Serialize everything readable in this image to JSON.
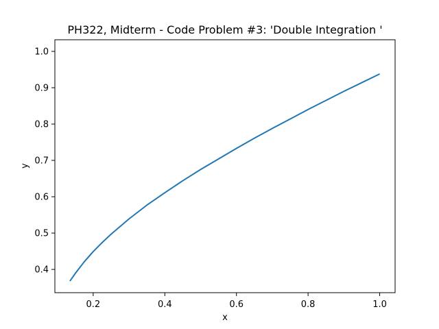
{
  "chart_data": {
    "type": "line",
    "title": "PH322, Midterm - Code Problem #3: 'Double Integration '",
    "xlabel": "x",
    "ylabel": "y",
    "xlim": [
      0.093,
      1.043
    ],
    "ylim": [
      0.336,
      1.032
    ],
    "x_ticks": [
      0.2,
      0.4,
      0.6,
      0.8,
      1.0
    ],
    "x_tick_labels": [
      "0.2",
      "0.4",
      "0.6",
      "0.8",
      "1.0"
    ],
    "y_ticks": [
      0.4,
      0.5,
      0.6,
      0.7,
      0.8,
      0.9,
      1.0
    ],
    "y_tick_labels": [
      "0.4",
      "0.5",
      "0.6",
      "0.7",
      "0.8",
      "0.9",
      "1.0"
    ],
    "grid": false,
    "series": [
      {
        "color": "#1f77b4",
        "x": [
          0.135,
          0.15,
          0.175,
          0.2,
          0.225,
          0.25,
          0.3,
          0.35,
          0.4,
          0.45,
          0.5,
          0.55,
          0.6,
          0.65,
          0.7,
          0.75,
          0.8,
          0.85,
          0.9,
          0.95,
          1.0
        ],
        "y": [
          0.368,
          0.389,
          0.421,
          0.449,
          0.474,
          0.497,
          0.539,
          0.577,
          0.611,
          0.644,
          0.675,
          0.704,
          0.733,
          0.761,
          0.788,
          0.814,
          0.84,
          0.865,
          0.89,
          0.914,
          0.938
        ]
      }
    ]
  }
}
